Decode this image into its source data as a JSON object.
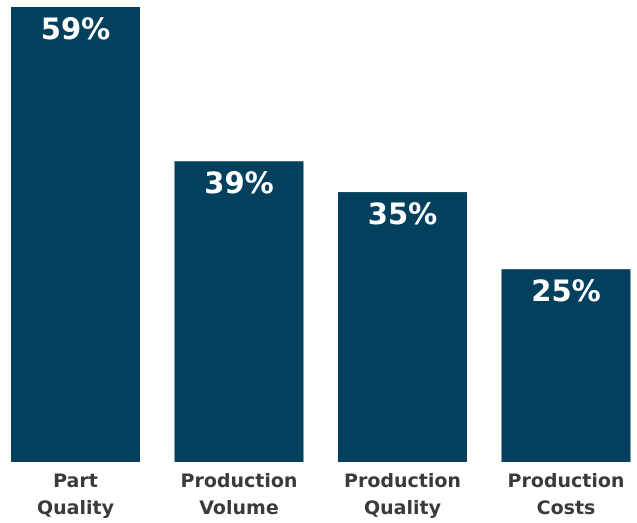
{
  "chart_data": {
    "type": "bar",
    "categories": [
      [
        "Part",
        "Quality"
      ],
      [
        "Production",
        "Volume"
      ],
      [
        "Production",
        "Quality"
      ],
      [
        "Production",
        "Costs"
      ]
    ],
    "values": [
      59,
      39,
      35,
      25
    ],
    "data_labels": [
      "59%",
      "39%",
      "35%",
      "25%"
    ],
    "unit": "%",
    "title": "",
    "xlabel": "",
    "ylabel": "",
    "ylim": [
      0,
      59
    ],
    "grid": false,
    "legend": "none",
    "colors": {
      "bar": "#03405e",
      "value_text": "#ffffff",
      "category_text": "#3a3a3a",
      "background": "#ffffff"
    }
  }
}
